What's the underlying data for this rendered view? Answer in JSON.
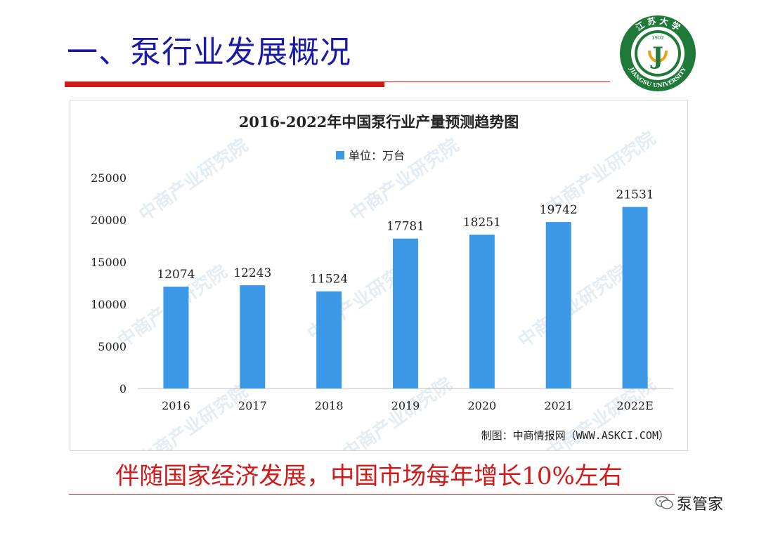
{
  "slide": {
    "title": "一、泵行业发展概况",
    "caption": "伴随国家经济发展，中国市场每年增长10%左右",
    "brand": "泵管家",
    "logo": {
      "top_text": "江 苏 大 学",
      "bottom_text": "JIANGSU UNIVERSITY",
      "year": "1902",
      "letter": "J",
      "ring_color": "#1f7a3a"
    },
    "accent_color": "#d11a1a",
    "title_color": "#1a1aa6"
  },
  "chart_data": {
    "type": "bar",
    "title": "2016-2022年中国泵行业产量预测趋势图",
    "legend_label": "单位：万台",
    "legend_position": "top",
    "categories": [
      "2016",
      "2017",
      "2018",
      "2019",
      "2020",
      "2021",
      "2022E"
    ],
    "values": [
      12074,
      12243,
      11524,
      17781,
      18251,
      19742,
      21531
    ],
    "ylim": [
      0,
      25000
    ],
    "yticks": [
      0,
      5000,
      10000,
      15000,
      20000,
      25000
    ],
    "grid": false,
    "bar_color": "#3b99e8",
    "source": "制图：中商情报网（WWW.ASKCI.COM）",
    "watermark": "中商产业研究院"
  }
}
